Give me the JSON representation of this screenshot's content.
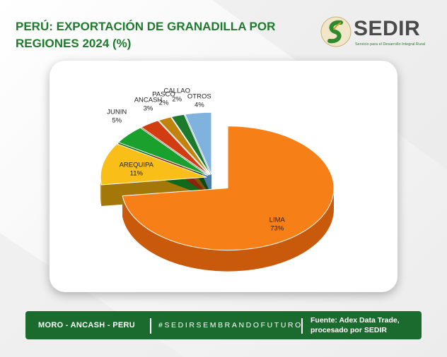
{
  "title": "PERÚ: EXPORTACIÓN DE GRANADILLA POR REGIONES 2024 (%)",
  "logo": {
    "name": "SEDIR",
    "tagline": "Servicio para el Desarrollo Integral Rural"
  },
  "footer": {
    "location": "MORO - ANCASH - PERU",
    "hashtag": "#SEDIRSEMBRANDOFUTURO",
    "source": "Fuente: Adex Data Trade, procesado por SEDIR"
  },
  "colors": {
    "brand_green": "#1e7a2c",
    "footer_green": "#1b6b2e"
  },
  "chart_data": {
    "type": "pie",
    "title": "PERÚ: EXPORTACIÓN DE GRANADILLA POR REGIONES 2024 (%)",
    "unit": "%",
    "slices": [
      {
        "label": "LIMA",
        "value": 73,
        "display": "73%",
        "color": "#f77f17",
        "side": "#c9590b"
      },
      {
        "label": "AREQUIPA",
        "value": 11,
        "display": "11%",
        "color": "#f9be17",
        "side": "#a37708"
      },
      {
        "label": "JUNIN",
        "value": 5,
        "display": "5%",
        "color": "#1aa02c",
        "side": "#0f6a1b"
      },
      {
        "label": "ANCASH",
        "value": 3,
        "display": "3%",
        "color": "#d13d11",
        "side": "#892508"
      },
      {
        "label": "PASCO",
        "value": 2,
        "display": "2%",
        "color": "#c2830e",
        "side": "#7e5407"
      },
      {
        "label": "CALLAO",
        "value": 2,
        "display": "2%",
        "color": "#1d7a2c",
        "side": "#0e4a18"
      },
      {
        "label": "OTROS",
        "value": 4,
        "display": "4%",
        "color": "#7fb3dd",
        "side": "#4a7ea8"
      }
    ]
  }
}
